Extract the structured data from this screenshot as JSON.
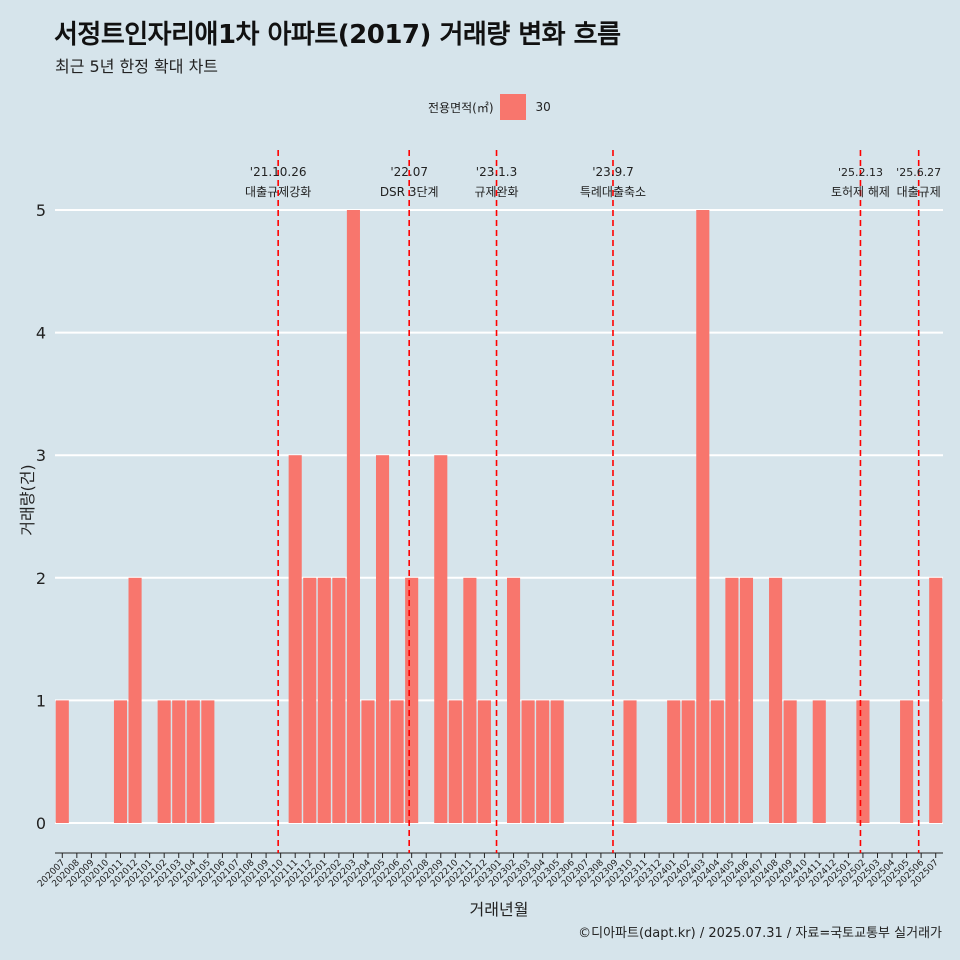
{
  "header": {
    "title": "서정트인자리애1차 아파트(2017) 거래량 변화 흐름",
    "subtitle": "최근 5년 한정 확대 차트"
  },
  "legend": {
    "title": "전용면적(㎡)",
    "items": [
      {
        "label": "30",
        "color": "#f8766d"
      }
    ]
  },
  "caption": "©디아파트(dapt.kr) / 2025.07.31 / 자료=국토교통부 실거래가",
  "chart_data": {
    "type": "bar",
    "xlabel": "거래년월",
    "ylabel": "거래량(건)",
    "ylim": [
      0,
      5
    ],
    "yticks": [
      0,
      1,
      2,
      3,
      4,
      5
    ],
    "grid": "horizontal",
    "legend_position": "top",
    "colors": {
      "bar": "#f8766d",
      "vline": "#ff0000",
      "grid": "#ffffff",
      "background": "#d6e4eb"
    },
    "categories": [
      "202007",
      "202008",
      "202009",
      "202010",
      "202011",
      "202012",
      "202101",
      "202102",
      "202103",
      "202104",
      "202105",
      "202106",
      "202107",
      "202108",
      "202109",
      "202110",
      "202111",
      "202112",
      "202201",
      "202202",
      "202203",
      "202204",
      "202205",
      "202206",
      "202207",
      "202208",
      "202209",
      "202210",
      "202211",
      "202212",
      "202301",
      "202302",
      "202303",
      "202304",
      "202305",
      "202306",
      "202307",
      "202308",
      "202309",
      "202310",
      "202311",
      "202312",
      "202401",
      "202402",
      "202403",
      "202404",
      "202405",
      "202406",
      "202407",
      "202408",
      "202409",
      "202410",
      "202411",
      "202412",
      "202501",
      "202502",
      "202503",
      "202504",
      "202505",
      "202506",
      "202507"
    ],
    "series": [
      {
        "name": "30",
        "values": [
          1,
          0,
          0,
          0,
          1,
          2,
          0,
          1,
          1,
          1,
          1,
          0,
          0,
          0,
          0,
          0,
          3,
          2,
          2,
          2,
          5,
          1,
          3,
          1,
          2,
          0,
          3,
          1,
          2,
          1,
          0,
          2,
          1,
          1,
          1,
          0,
          0,
          0,
          0,
          1,
          0,
          0,
          1,
          1,
          5,
          1,
          2,
          2,
          0,
          2,
          1,
          0,
          1,
          0,
          0,
          1,
          0,
          0,
          1,
          0,
          2
        ]
      }
    ],
    "annotations": [
      {
        "date": "'21.10.26",
        "label": "대출규제강화",
        "x_pos": 15.33
      },
      {
        "date": "'22.07",
        "label": "DSR 3단계",
        "x_pos": 24.33
      },
      {
        "date": "'23.1.3",
        "label": "규제완화",
        "x_pos": 30.33
      },
      {
        "date": "'23.9.7",
        "label": "특례대출축소",
        "x_pos": 38.33
      },
      {
        "date": "'25.2.13",
        "label": "토허제 해제",
        "x_pos": 55.33
      },
      {
        "date": "'25.6.27",
        "label": "대출규제",
        "x_pos": 59.33
      }
    ]
  }
}
